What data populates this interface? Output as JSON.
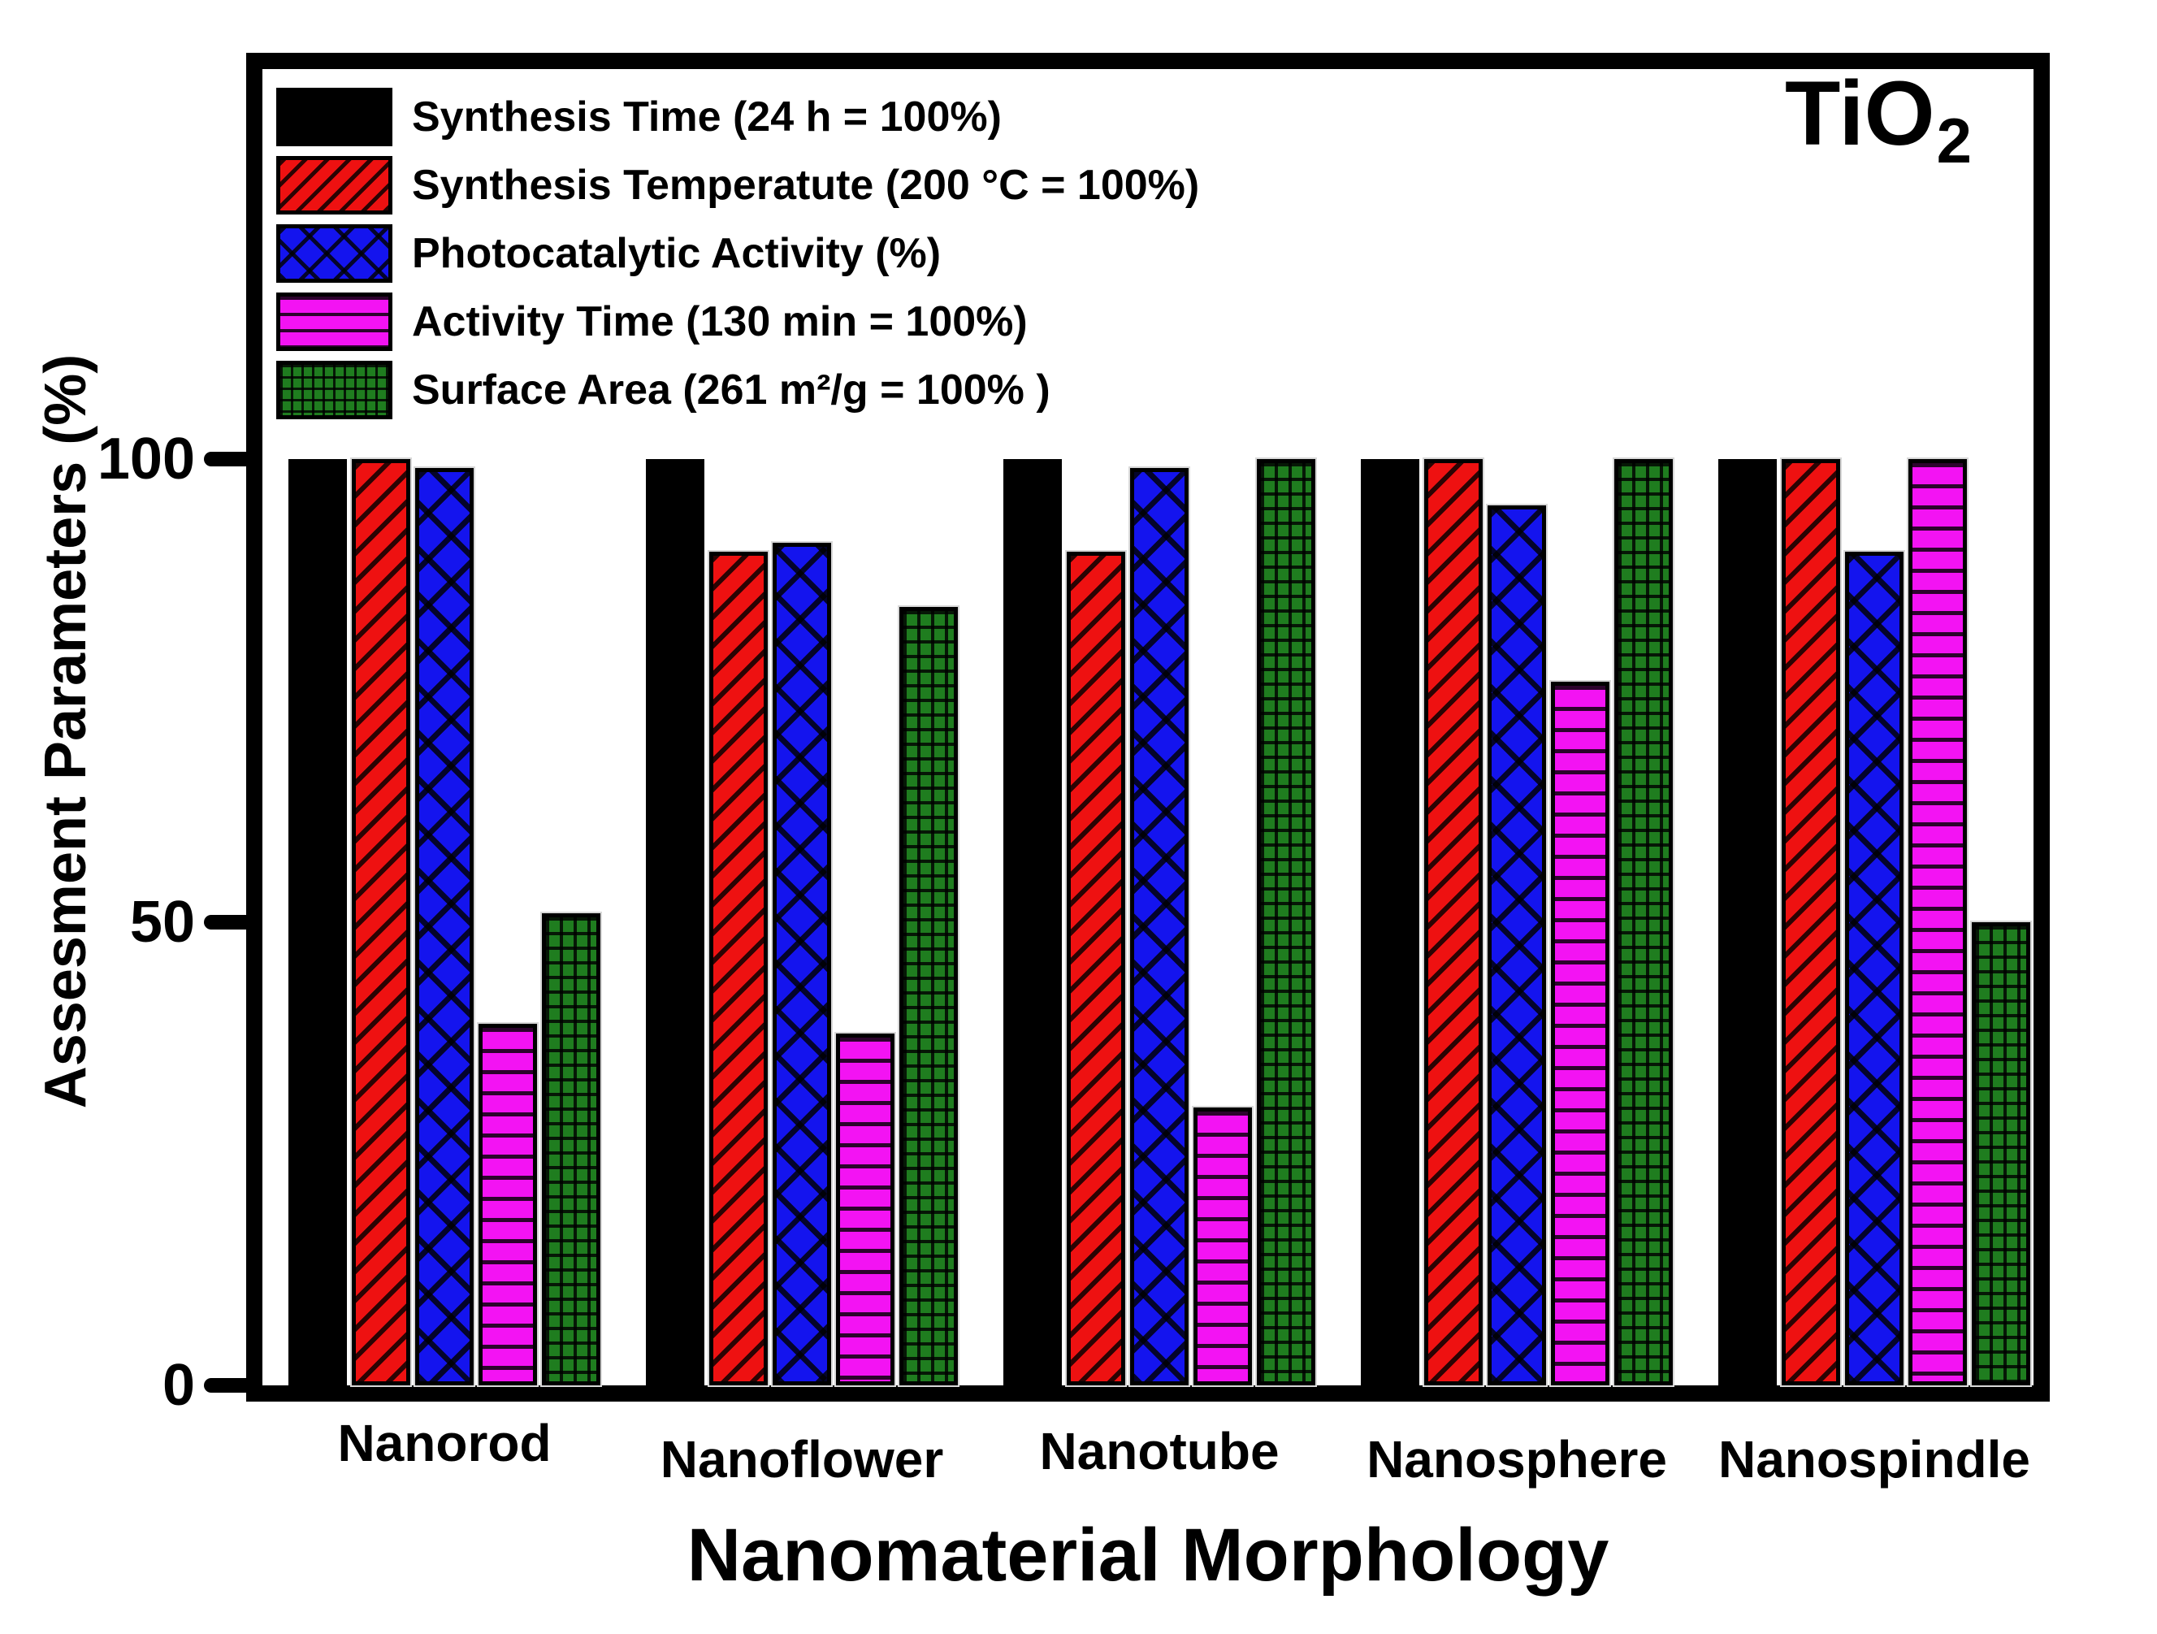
{
  "figure": {
    "corner_label": {
      "base": "TiO",
      "subscript": "2"
    }
  },
  "chart_data": {
    "type": "bar",
    "title": "",
    "xlabel": "Nanomaterial Morphology",
    "ylabel": "Assesment Parameters (%)",
    "ylim": [
      0,
      142
    ],
    "yticks": [
      0,
      50,
      100
    ],
    "grid": false,
    "legend_position": "upper left",
    "categories": [
      "Nanorod",
      "Nanoflower",
      "Nanotube",
      "Nanosphere",
      "Nanospindle"
    ],
    "series": [
      {
        "name": "Synthesis Time (24 h = 100%)",
        "color": "#000000",
        "pattern": "solid",
        "values": [
          100,
          100,
          100,
          100,
          100
        ]
      },
      {
        "name": "Synthesis Temperatute (200 °C = 100%)",
        "color": "#ee1111",
        "pattern": "diagonal",
        "values": [
          100,
          90,
          90,
          100,
          100
        ]
      },
      {
        "name": "Photocatalytic Activity (%)",
        "color": "#1414ee",
        "pattern": "crosshatch",
        "values": [
          99,
          91,
          99,
          95,
          90
        ]
      },
      {
        "name": "Activity Time (130 min = 100%)",
        "color": "#f313f3",
        "pattern": "hlines",
        "values": [
          39,
          38,
          30,
          76,
          100
        ]
      },
      {
        "name": "Surface Area (261 m²/g = 100% )",
        "color": "#1f7d1f",
        "pattern": "grid",
        "values": [
          51,
          84,
          100,
          100,
          50
        ]
      }
    ]
  }
}
